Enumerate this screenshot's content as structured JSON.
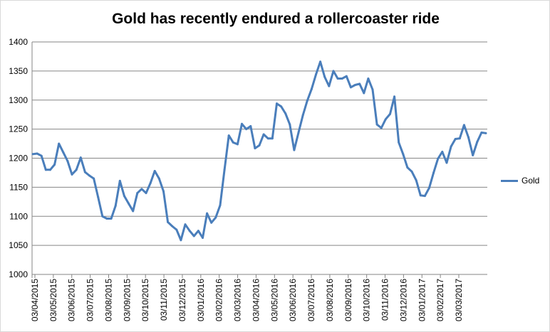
{
  "chart_data": {
    "type": "line",
    "title": "Gold has recently endured a rollercoaster ride",
    "xlabel": "",
    "ylabel": "",
    "ylim": [
      1000,
      1400
    ],
    "y_ticks": [
      1000,
      1050,
      1100,
      1150,
      1200,
      1250,
      1300,
      1350,
      1400
    ],
    "x_tick_labels": [
      "03/04/2015",
      "03/05/2015",
      "03/06/2015",
      "03/07/2015",
      "03/08/2015",
      "03/09/2015",
      "03/10/2015",
      "03/11/2015",
      "03/12/2015",
      "03/01/2016",
      "03/02/2016",
      "03/03/2016",
      "03/04/2016",
      "03/05/2016",
      "03/06/2016",
      "03/07/2016",
      "03/08/2016",
      "03/09/2016",
      "03/10/2016",
      "03/11/2016",
      "03/12/2016",
      "03/01/2017",
      "03/02/2017",
      "03/03/2017"
    ],
    "grid": true,
    "legend_position": "right",
    "series": [
      {
        "name": "Gold",
        "color": "#4a7ebb",
        "values": [
          1207,
          1208,
          1204,
          1180,
          1180,
          1189,
          1225,
          1210,
          1195,
          1172,
          1180,
          1201,
          1176,
          1170,
          1165,
          1133,
          1100,
          1096,
          1096,
          1118,
          1161,
          1135,
          1122,
          1109,
          1140,
          1147,
          1140,
          1157,
          1178,
          1165,
          1143,
          1090,
          1083,
          1077,
          1059,
          1086,
          1075,
          1066,
          1075,
          1063,
          1105,
          1089,
          1098,
          1119,
          1180,
          1239,
          1227,
          1224,
          1259,
          1250,
          1255,
          1217,
          1222,
          1241,
          1234,
          1234,
          1294,
          1289,
          1277,
          1258,
          1214,
          1244,
          1274,
          1299,
          1319,
          1344,
          1366,
          1340,
          1324,
          1350,
          1337,
          1337,
          1341,
          1322,
          1326,
          1328,
          1312,
          1337,
          1318,
          1258,
          1252,
          1267,
          1276,
          1306,
          1227,
          1207,
          1184,
          1177,
          1162,
          1136,
          1135,
          1149,
          1175,
          1199,
          1211,
          1192,
          1220,
          1233,
          1234,
          1257,
          1236,
          1205,
          1228,
          1244,
          1243
        ]
      }
    ]
  }
}
